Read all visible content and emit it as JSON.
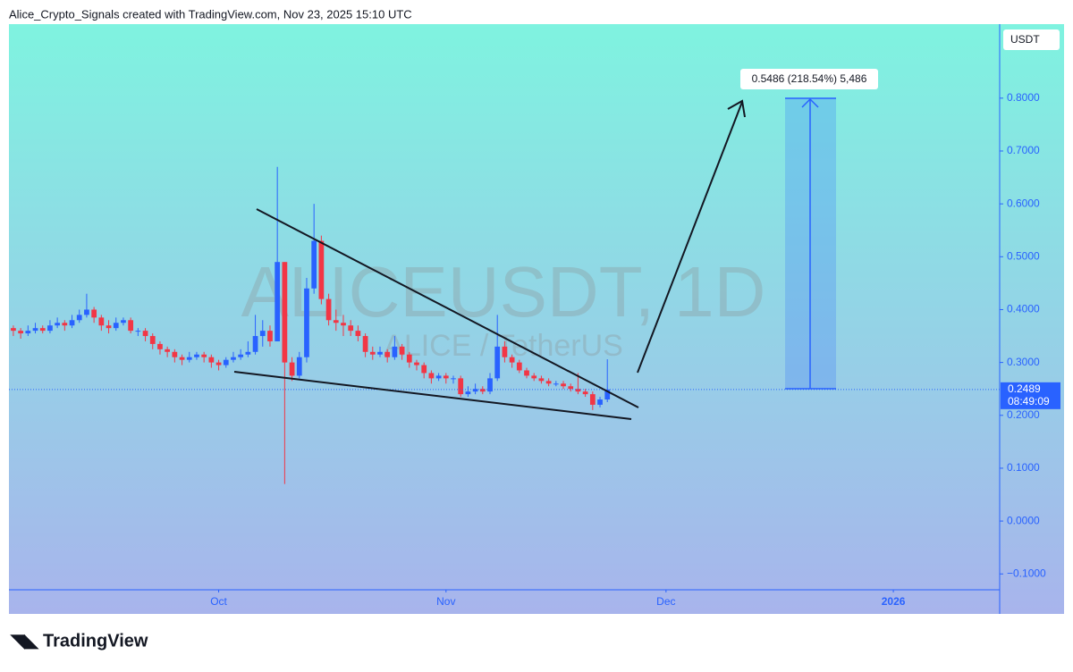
{
  "header": "Alice_Crypto_Signals created with TradingView.com, Nov 23, 2025 15:10 UTC",
  "footer": "TradingView",
  "chart_data": {
    "type": "candlestick",
    "watermark": "ALICEUSDT, 1D",
    "watermark_subtitle": "ALICE / TetherUS",
    "currency": "USDT",
    "annotation": "0.5486 (218.54%) 5,486",
    "last_price": 0.2489,
    "countdown": "08:49:09",
    "up_color": "#2962ff",
    "down_color": "#f23645",
    "xlim": [
      -0.6,
      134.5
    ],
    "xticks": [
      {
        "value": 28,
        "label": "Oct"
      },
      {
        "value": 59,
        "label": "Nov"
      },
      {
        "value": 89,
        "label": "Dec"
      },
      {
        "value": 120,
        "label": "2026"
      }
    ],
    "ylim": [
      -0.13,
      0.94
    ],
    "yticks": [
      {
        "value": 0.8,
        "label": "0.8000"
      },
      {
        "value": 0.7,
        "label": "0.7000"
      },
      {
        "value": 0.6,
        "label": "0.6000"
      },
      {
        "value": 0.5,
        "label": "0.5000"
      },
      {
        "value": 0.4,
        "label": "0.4000"
      },
      {
        "value": 0.3,
        "label": "0.3000"
      },
      {
        "value": 0.2,
        "label": "0.2000"
      },
      {
        "value": 0.1,
        "label": "0.1000"
      },
      {
        "value": 0,
        "label": "0.0000"
      },
      {
        "value": -0.1,
        "label": "−0.1000"
      }
    ],
    "open": [
      0.365,
      0.36,
      0.355,
      0.36,
      0.365,
      0.36,
      0.37,
      0.375,
      0.37,
      0.38,
      0.39,
      0.4,
      0.385,
      0.37,
      0.365,
      0.375,
      0.38,
      0.36,
      0.36,
      0.35,
      0.335,
      0.325,
      0.32,
      0.31,
      0.305,
      0.31,
      0.315,
      0.31,
      0.3,
      0.295,
      0.305,
      0.31,
      0.315,
      0.32,
      0.35,
      0.36,
      0.34,
      0.49,
      0.3,
      0.275,
      0.31,
      0.44,
      0.53,
      0.42,
      0.38,
      0.375,
      0.37,
      0.36,
      0.35,
      0.32,
      0.315,
      0.32,
      0.31,
      0.33,
      0.315,
      0.3,
      0.295,
      0.28,
      0.27,
      0.275,
      0.27,
      0.27,
      0.24,
      0.245,
      0.25,
      0.245,
      0.27,
      0.33,
      0.31,
      0.3,
      0.285,
      0.275,
      0.27,
      0.265,
      0.26,
      0.26,
      0.255,
      0.25,
      0.245,
      0.24,
      0.22,
      0.23
    ],
    "high": [
      0.37,
      0.365,
      0.37,
      0.375,
      0.37,
      0.38,
      0.385,
      0.38,
      0.39,
      0.4,
      0.43,
      0.405,
      0.39,
      0.38,
      0.385,
      0.385,
      0.385,
      0.365,
      0.365,
      0.355,
      0.34,
      0.33,
      0.325,
      0.315,
      0.32,
      0.32,
      0.32,
      0.315,
      0.305,
      0.31,
      0.32,
      0.325,
      0.34,
      0.39,
      0.38,
      0.37,
      0.67,
      0.49,
      0.31,
      0.32,
      0.46,
      0.6,
      0.54,
      0.43,
      0.4,
      0.39,
      0.38,
      0.37,
      0.355,
      0.33,
      0.33,
      0.325,
      0.35,
      0.335,
      0.32,
      0.305,
      0.3,
      0.285,
      0.28,
      0.28,
      0.275,
      0.275,
      0.255,
      0.26,
      0.255,
      0.28,
      0.39,
      0.34,
      0.315,
      0.305,
      0.29,
      0.28,
      0.275,
      0.27,
      0.265,
      0.265,
      0.26,
      0.28,
      0.25,
      0.245,
      0.235,
      0.306
    ],
    "low": [
      0.35,
      0.345,
      0.35,
      0.355,
      0.355,
      0.355,
      0.365,
      0.36,
      0.365,
      0.375,
      0.385,
      0.375,
      0.36,
      0.355,
      0.36,
      0.37,
      0.355,
      0.35,
      0.34,
      0.325,
      0.315,
      0.31,
      0.3,
      0.295,
      0.3,
      0.305,
      0.3,
      0.29,
      0.285,
      0.29,
      0.3,
      0.305,
      0.31,
      0.315,
      0.33,
      0.33,
      0.34,
      0.07,
      0.265,
      0.27,
      0.3,
      0.43,
      0.41,
      0.37,
      0.36,
      0.35,
      0.35,
      0.34,
      0.31,
      0.305,
      0.31,
      0.3,
      0.305,
      0.305,
      0.29,
      0.285,
      0.27,
      0.26,
      0.265,
      0.26,
      0.26,
      0.235,
      0.235,
      0.24,
      0.24,
      0.24,
      0.265,
      0.3,
      0.29,
      0.28,
      0.27,
      0.265,
      0.26,
      0.255,
      0.255,
      0.25,
      0.245,
      0.24,
      0.235,
      0.21,
      0.215,
      0.225
    ],
    "close": [
      0.36,
      0.355,
      0.36,
      0.365,
      0.36,
      0.37,
      0.375,
      0.37,
      0.38,
      0.39,
      0.4,
      0.385,
      0.37,
      0.365,
      0.375,
      0.38,
      0.36,
      0.36,
      0.35,
      0.335,
      0.325,
      0.32,
      0.31,
      0.305,
      0.31,
      0.315,
      0.31,
      0.3,
      0.295,
      0.305,
      0.31,
      0.315,
      0.32,
      0.35,
      0.36,
      0.34,
      0.49,
      0.3,
      0.275,
      0.31,
      0.44,
      0.53,
      0.42,
      0.38,
      0.375,
      0.37,
      0.36,
      0.35,
      0.32,
      0.315,
      0.32,
      0.31,
      0.33,
      0.315,
      0.3,
      0.295,
      0.28,
      0.27,
      0.275,
      0.27,
      0.27,
      0.24,
      0.245,
      0.25,
      0.245,
      0.27,
      0.33,
      0.31,
      0.3,
      0.285,
      0.275,
      0.27,
      0.265,
      0.26,
      0.26,
      0.255,
      0.25,
      0.245,
      0.24,
      0.22,
      0.23,
      0.2489
    ]
  }
}
